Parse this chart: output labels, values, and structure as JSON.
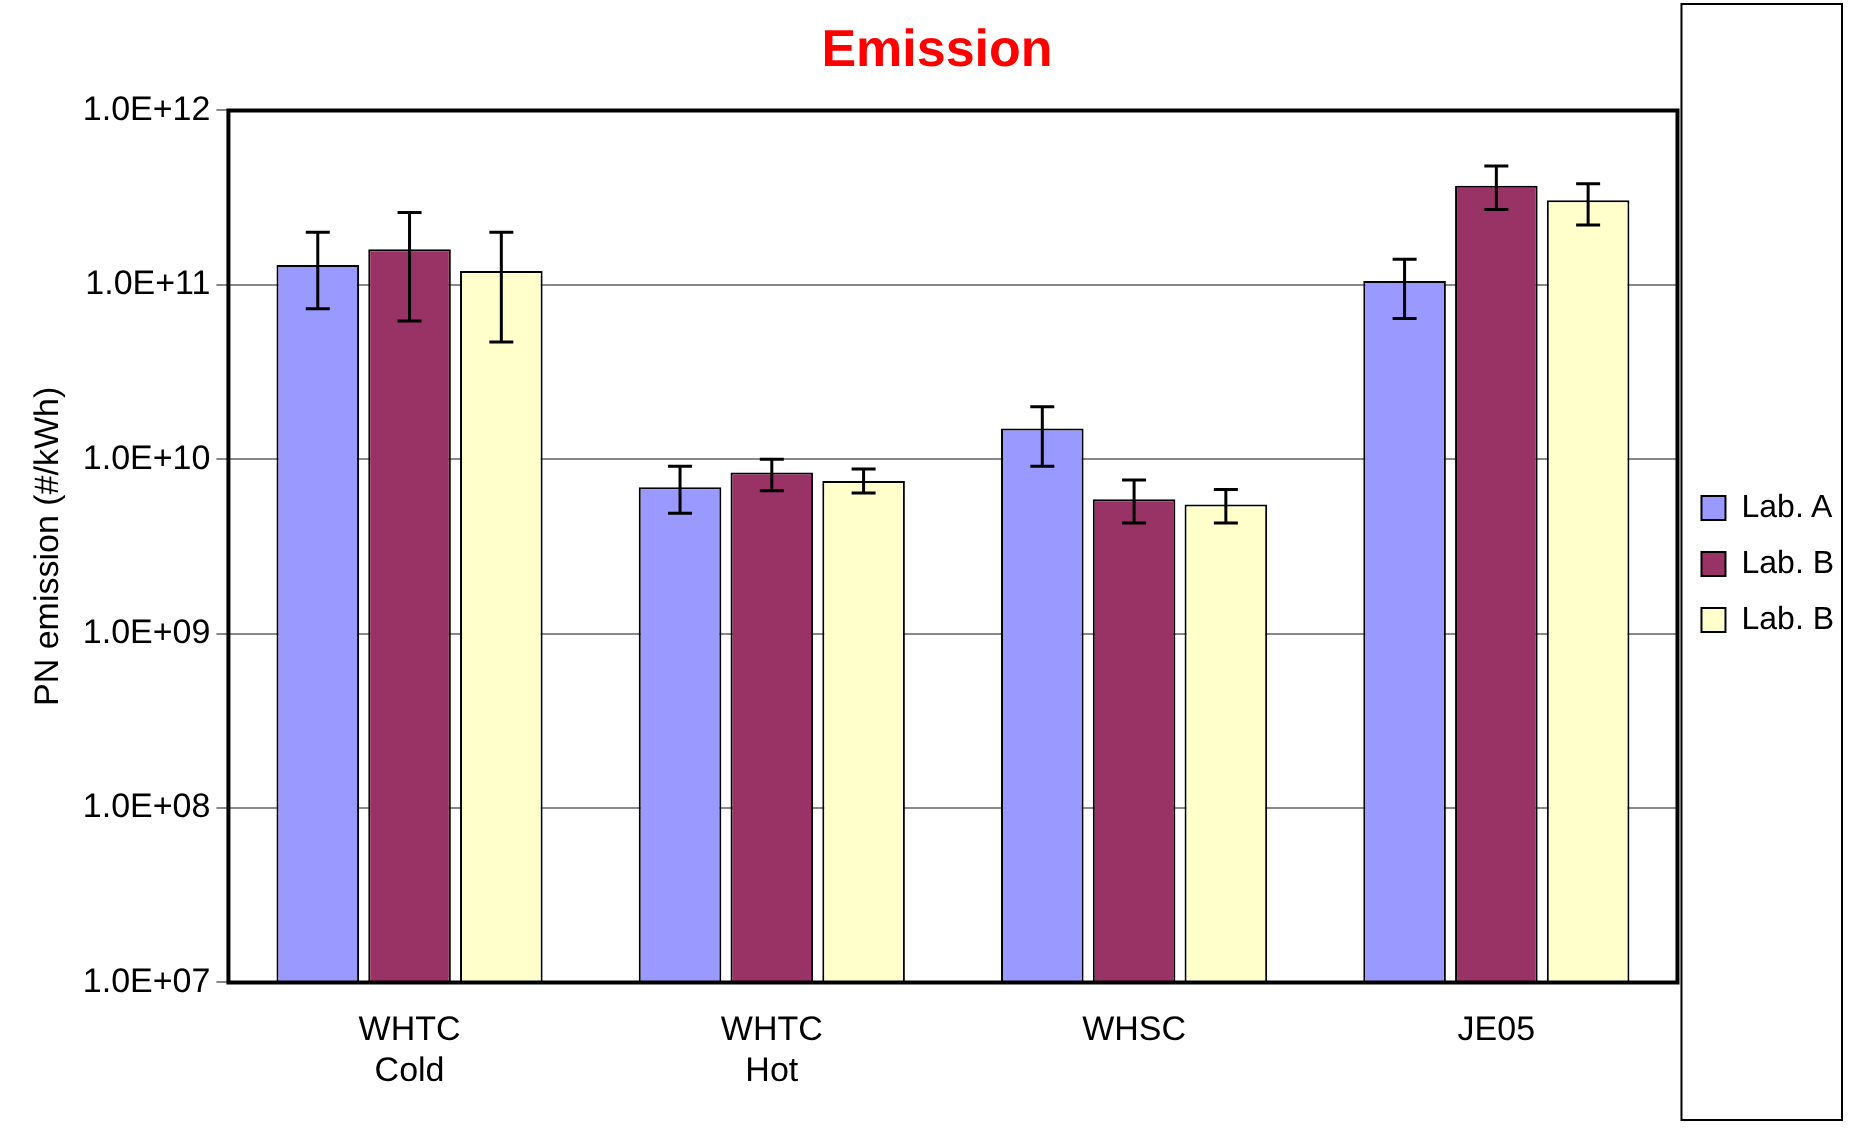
{
  "chart_data": {
    "type": "bar",
    "title": "Emission",
    "ylabel": "PN emission (#/kWh)",
    "categories": [
      "WHTC Cold",
      "WHTC Hot",
      "WHSC",
      "JE05"
    ],
    "series": [
      {
        "name": "Lab. A",
        "color": "#9999ff",
        "values": [
          130000000000.0,
          6900000000.0,
          15000000000.0,
          105000000000.0
        ],
        "errors": [
          [
            73000000000.0,
            200000000000.0
          ],
          [
            4900000000.0,
            9100000000.0
          ],
          [
            9100000000.0,
            20000000000.0
          ],
          [
            64000000000.0,
            140000000000.0
          ]
        ]
      },
      {
        "name": "Lab. B",
        "color": "#993366",
        "values": [
          160000000000.0,
          8400000000.0,
          5900000000.0,
          370000000000.0
        ],
        "errors": [
          [
            62000000000.0,
            260000000000.0
          ],
          [
            6600000000.0,
            10000000000.0
          ],
          [
            4300000000.0,
            7600000000.0
          ],
          [
            270000000000.0,
            480000000000.0
          ]
        ]
      },
      {
        "name": "Lab. B",
        "color": "#ffffcc",
        "values": [
          120000000000.0,
          7500000000.0,
          5500000000.0,
          305000000000.0
        ],
        "errors": [
          [
            47000000000.0,
            200000000000.0
          ],
          [
            6400000000.0,
            8800000000.0
          ],
          [
            4300000000.0,
            6700000000.0
          ],
          [
            220000000000.0,
            380000000000.0
          ]
        ]
      }
    ],
    "log": "y",
    "ylim": [
      10000000.0,
      1000000000000.0
    ],
    "yticks": [
      {
        "value": 10000000.0,
        "label": "1.0E+07"
      },
      {
        "value": 100000000.0,
        "label": "1.0E+08"
      },
      {
        "value": 1000000000.0,
        "label": "1.0E+09"
      },
      {
        "value": 10000000000.0,
        "label": "1.0E+10"
      },
      {
        "value": 100000000000.0,
        "label": "1.0E+11"
      },
      {
        "value": 1000000000000.0,
        "label": "1.0E+12"
      }
    ],
    "grid": "y",
    "legend": "right"
  }
}
